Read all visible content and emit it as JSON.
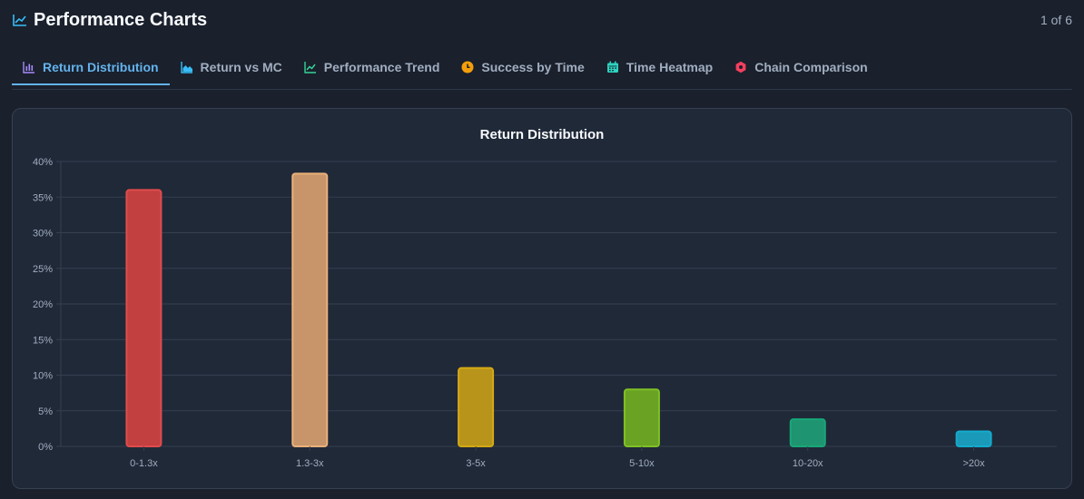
{
  "header": {
    "title": "Performance Charts",
    "pager": "1 of 6"
  },
  "tabs": [
    {
      "label": "Return Distribution",
      "icon": "bar-chart-icon",
      "color": "#a78bfa",
      "active": true
    },
    {
      "label": "Return vs MC",
      "icon": "area-chart-icon",
      "color": "#38bdf8",
      "active": false
    },
    {
      "label": "Performance Trend",
      "icon": "trend-line-icon",
      "color": "#34d399",
      "active": false
    },
    {
      "label": "Success by Time",
      "icon": "clock-icon",
      "color": "#f59e0b",
      "active": false
    },
    {
      "label": "Time Heatmap",
      "icon": "calendar-icon",
      "color": "#2dd4bf",
      "active": false
    },
    {
      "label": "Chain Comparison",
      "icon": "hexagon-icon",
      "color": "#f43f5e",
      "active": false
    }
  ],
  "colors": {
    "accent": "#63b3ed"
  },
  "chart_data": {
    "type": "bar",
    "title": "Return Distribution",
    "xlabel": "",
    "ylabel": "",
    "categories": [
      "0-1.3x",
      "1.3-3x",
      "3-5x",
      "5-10x",
      "10-20x",
      ">20x"
    ],
    "values": [
      36,
      38.3,
      11,
      8,
      3.8,
      2.1
    ],
    "ylim": [
      0,
      40
    ],
    "yticks": [
      0,
      5,
      10,
      15,
      20,
      25,
      30,
      35,
      40
    ],
    "ytick_suffix": "%",
    "bar_fill": [
      "#c2403f",
      "#c8956a",
      "#b8941a",
      "#6aa224",
      "#1f9470",
      "#1a9ab8"
    ],
    "bar_stroke": [
      "#e04c4c",
      "#eab07a",
      "#d4a914",
      "#7fc125",
      "#17a878",
      "#14abd0"
    ],
    "grid": true
  }
}
